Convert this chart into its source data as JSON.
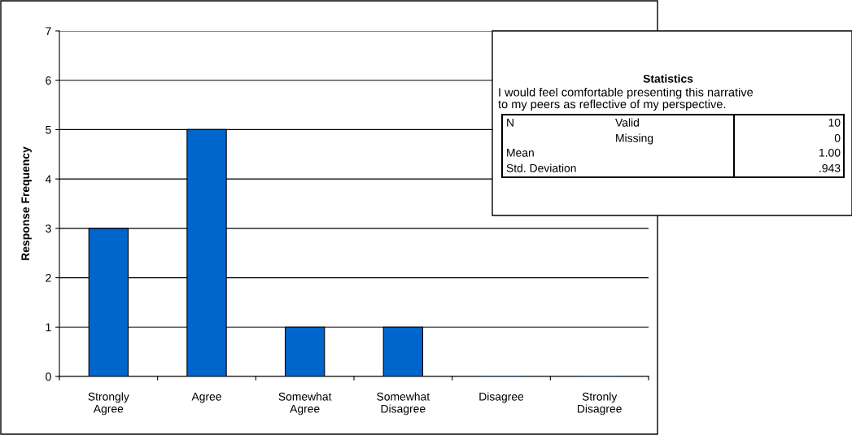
{
  "chart_data": {
    "type": "bar",
    "ylabel": "Response Frequency",
    "categories": [
      "Strongly\nAgree",
      "Agree",
      "Somewhat\nAgree",
      "Somewhat\nDisagree",
      "Disagree",
      "Stronly\nDisagree"
    ],
    "values": [
      3,
      5,
      1,
      1,
      0,
      0
    ],
    "color": "#0066cc",
    "ylim": [
      0,
      7
    ],
    "yticks": [
      0,
      1,
      2,
      3,
      4,
      5,
      6,
      7
    ],
    "grid": "y",
    "annotations": [
      "Statistics",
      "I would feel comfortable presenting this narrative\nto my peers as reflective of my perspective.",
      "N",
      "Valid",
      "10",
      "Missing",
      "0",
      "Mean",
      "1.00",
      "Std. Deviation",
      ".943"
    ]
  }
}
